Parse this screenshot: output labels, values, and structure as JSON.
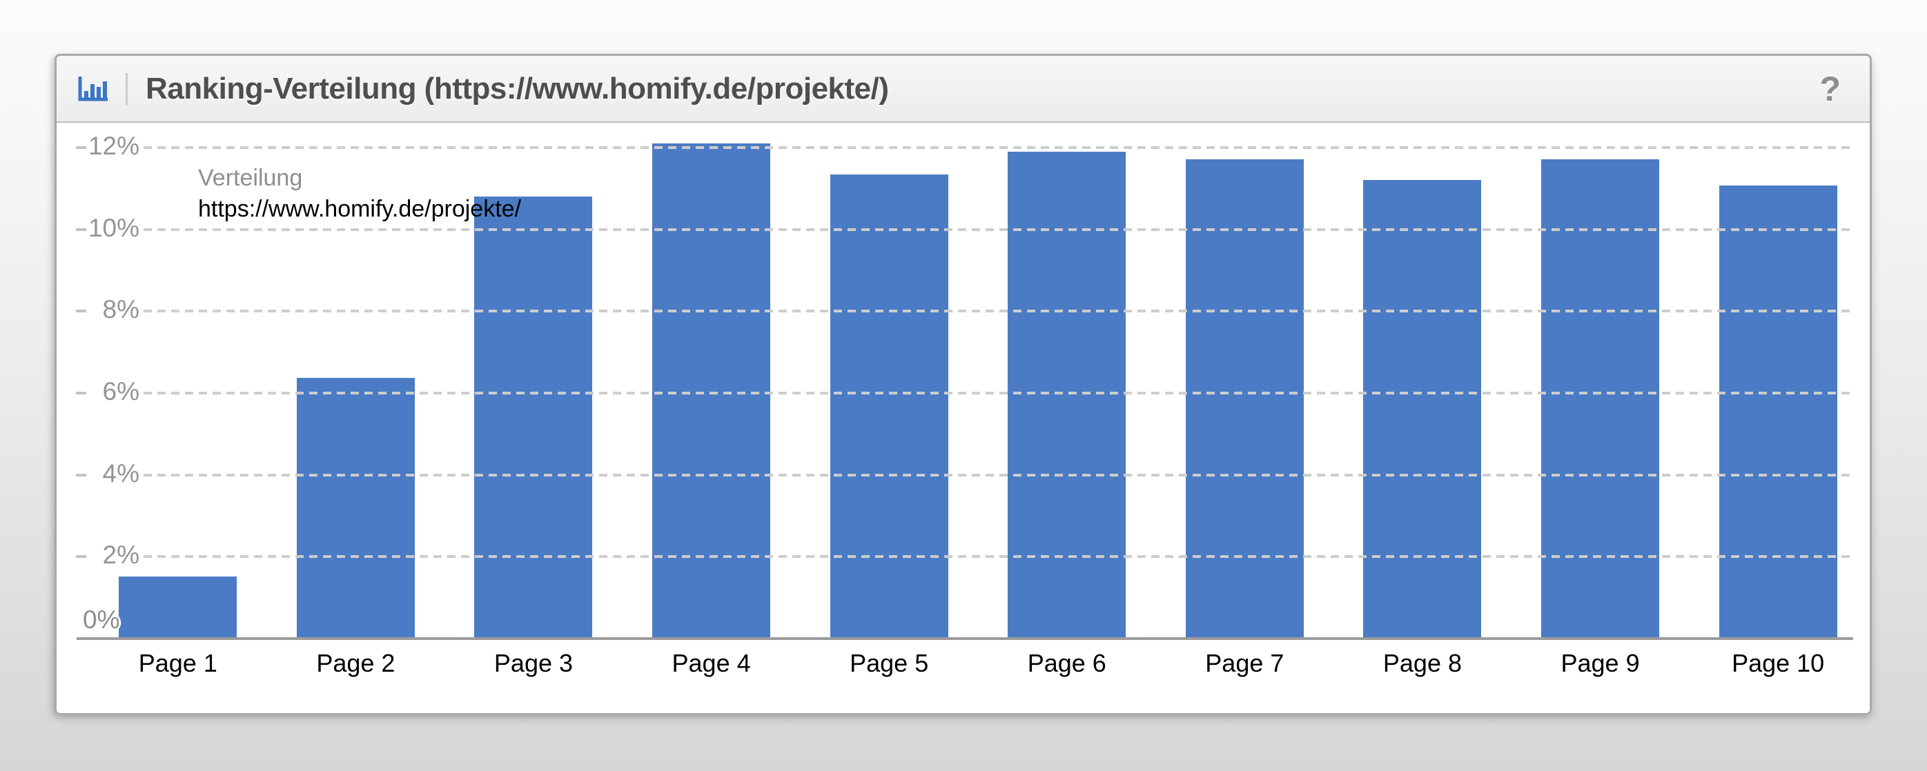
{
  "widget": {
    "header": {
      "icon": "bar-chart-icon",
      "title": "Ranking-Verteilung (https://www.homify.de/projekte/)",
      "help_glyph": "?"
    }
  },
  "chart_data": {
    "type": "bar",
    "title": "Ranking-Verteilung (https://www.homify.de/projekte/)",
    "categories": [
      "Page 1",
      "Page 2",
      "Page 3",
      "Page 4",
      "Page 5",
      "Page 6",
      "Page 7",
      "Page 8",
      "Page 9",
      "Page 10"
    ],
    "values": [
      1.52,
      6.37,
      10.8,
      12.1,
      11.35,
      11.9,
      11.72,
      11.2,
      11.72,
      11.08
    ],
    "unit": "%",
    "ylim": [
      0,
      12
    ],
    "yticks": [
      0,
      2,
      4,
      6,
      8,
      10,
      12
    ],
    "ytick_labels": [
      "0%",
      "2%",
      "4%",
      "6%",
      "8%",
      "10%",
      "12%"
    ],
    "grid": "dashed-horizontal",
    "legend": {
      "position": "top-left",
      "entries": [
        {
          "label": "Verteilung",
          "color": "#8f8f8f"
        },
        {
          "label": "https://www.homify.de/projekte/",
          "color": "#000000"
        }
      ]
    },
    "bar_color": "#4b7bc4",
    "colors": {
      "grid": "#cdcdcd",
      "axis": "#9c9c9c",
      "ytick_text": "#949494",
      "xtick_text": "#000000",
      "header_icon": "#3b76c6"
    }
  }
}
